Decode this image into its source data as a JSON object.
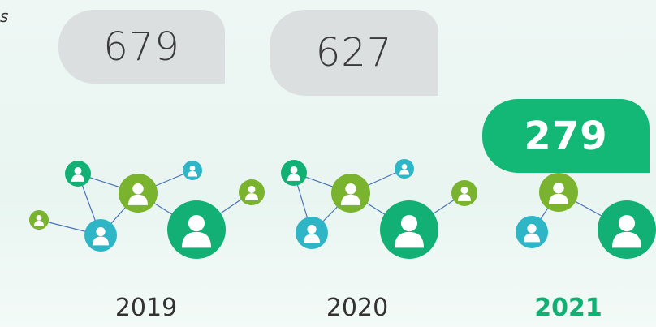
{
  "clipped_text": "s",
  "items": [
    {
      "value": "679",
      "year": "2019"
    },
    {
      "value": "627",
      "year": "2020"
    },
    {
      "value": "279",
      "year": "2021"
    }
  ]
}
